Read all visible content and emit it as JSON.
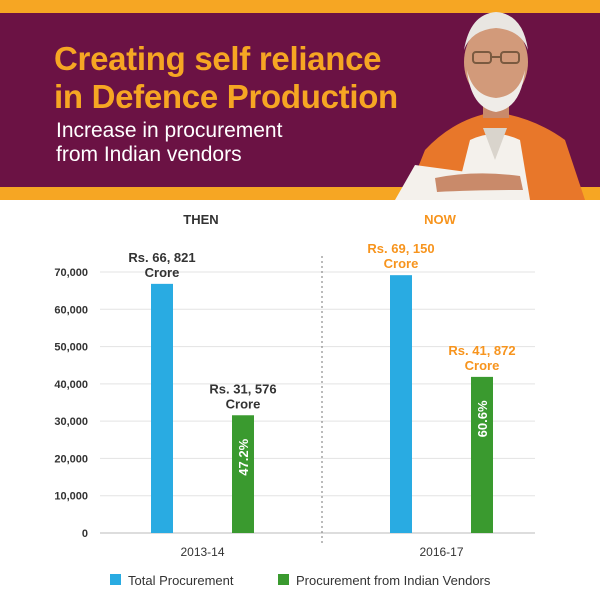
{
  "header": {
    "title_line1": "Creating self reliance",
    "title_line2": "in Defence Production",
    "subtitle_line1": "Increase in procurement",
    "subtitle_line2": "from Indian vendors"
  },
  "colors": {
    "banner_bg": "#6b1244",
    "accent_orange": "#f6a623",
    "total_bar": "#29abe2",
    "indian_bar": "#3a9a2f",
    "now_label": "#f7941d",
    "then_label": "#333333"
  },
  "portrait_icon": "person-portrait-icon",
  "chart_data": {
    "type": "bar",
    "title": "Creating self reliance in Defence Production",
    "categories": [
      "2013-14",
      "2016-17"
    ],
    "period_labels": [
      "THEN",
      "NOW"
    ],
    "series": [
      {
        "name": "Total Procurement",
        "values": [
          66821,
          69150
        ],
        "labels": [
          [
            "Rs. 66, 821",
            "Crore"
          ],
          [
            "Rs. 69, 150",
            "Crore"
          ]
        ]
      },
      {
        "name": "Procurement from Indian Vendors",
        "values": [
          31576,
          41872
        ],
        "labels": [
          [
            "Rs. 31, 576",
            "Crore"
          ],
          [
            "Rs. 41, 872",
            "Crore"
          ]
        ],
        "percent_labels": [
          "47.2%",
          "60.6%"
        ]
      }
    ],
    "yticks": [
      "0",
      "10,000",
      "20,000",
      "30,000",
      "40,000",
      "50,000",
      "60,000",
      "70,000"
    ],
    "ylim": [
      0,
      70000
    ],
    "grid": true,
    "legend_position": "bottom"
  }
}
